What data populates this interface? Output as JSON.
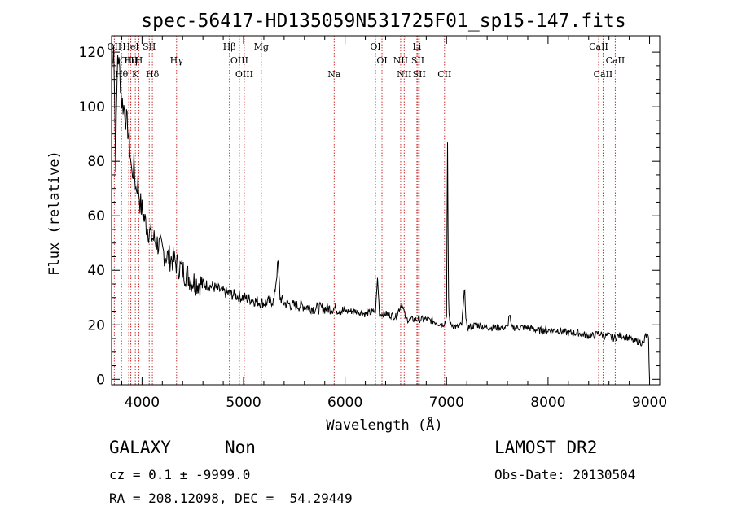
{
  "chart_data": {
    "type": "line",
    "title": "spec-56417-HD135059N531725F01_sp15-147.fits",
    "xlabel": "Wavelength (Å)",
    "ylabel": "Flux (relative)",
    "xlim": [
      3700,
      9100
    ],
    "ylim": [
      -2,
      126
    ],
    "x_ticks": [
      4000,
      5000,
      6000,
      7000,
      8000,
      9000
    ],
    "y_ticks": [
      0,
      20,
      40,
      60,
      80,
      100,
      120
    ],
    "grid": false,
    "series": [
      {
        "x": [
          3700,
          3720,
          3740,
          3760,
          3780,
          3800,
          3820,
          3840,
          3860,
          3880,
          3900,
          3920,
          3940,
          3960,
          3980,
          4000,
          4030,
          4060,
          4100,
          4150,
          4200,
          4250,
          4300,
          4350,
          4400,
          4450,
          4500,
          4600,
          4700,
          4800,
          4900,
          5000,
          5100,
          5200,
          5300,
          5340,
          5360,
          5400,
          5500,
          5600,
          5700,
          5800,
          5900,
          6000,
          6100,
          6200,
          6300,
          6320,
          6340,
          6400,
          6500,
          6560,
          6600,
          6700,
          6800,
          6900,
          6950,
          6990,
          7000,
          7005,
          7010,
          7015,
          7020,
          7025,
          7030,
          7035,
          7040,
          7060,
          7100,
          7150,
          7180,
          7190,
          7200,
          7300,
          7400,
          7500,
          7600,
          7620,
          7640,
          7700,
          7800,
          7900,
          8000,
          8100,
          8200,
          8300,
          8400,
          8450,
          8500,
          8550,
          8600,
          8650,
          8700,
          8750,
          8800,
          8850,
          8900,
          8940,
          8960,
          8980,
          8990,
          9000
        ],
        "y": [
          110,
          125,
          80,
          120,
          113,
          102,
          100,
          96,
          92,
          85,
          75,
          78,
          70,
          72,
          65,
          62,
          58,
          55,
          52,
          50,
          47,
          45,
          44,
          42,
          40,
          38,
          36,
          35,
          34,
          32,
          31,
          30,
          29,
          28,
          29,
          43,
          30,
          28,
          27,
          27,
          26,
          26,
          26,
          25,
          25,
          24,
          25,
          37,
          24,
          24,
          23,
          28,
          22,
          22,
          22,
          21,
          20,
          21,
          24,
          60,
          86,
          55,
          30,
          24,
          22,
          21,
          20,
          20,
          19,
          20,
          34,
          22,
          19,
          20,
          19,
          19,
          19,
          24,
          19,
          19,
          19,
          18,
          18,
          18,
          17,
          17,
          16,
          16,
          17,
          16,
          16,
          15,
          16,
          16,
          15,
          14,
          14,
          13,
          16,
          16,
          14,
          0
        ]
      }
    ],
    "line_markers": [
      {
        "label": "OII",
        "x": 3727,
        "row": 0
      },
      {
        "label": "HeI",
        "x": 3889,
        "row": 0
      },
      {
        "label": "SII",
        "x": 4071,
        "row": 0
      },
      {
        "label": "Hβ",
        "x": 4861,
        "row": 0
      },
      {
        "label": "Mg",
        "x": 5175,
        "row": 0
      },
      {
        "label": "OI",
        "x": 6300,
        "row": 0
      },
      {
        "label": "Li",
        "x": 6708,
        "row": 0
      },
      {
        "label": "CaII",
        "x": 8498,
        "row": 0
      },
      {
        "label": "OIII",
        "x": 3869,
        "row": 1
      },
      {
        "label": "Hη",
        "x": 3889,
        "row": 1
      },
      {
        "label": "H",
        "x": 3969,
        "row": 1
      },
      {
        "label": "Hγ",
        "x": 4340,
        "row": 1
      },
      {
        "label": "OIII",
        "x": 4959,
        "row": 1
      },
      {
        "label": "OI",
        "x": 6364,
        "row": 1
      },
      {
        "label": "NII",
        "x": 6548,
        "row": 1
      },
      {
        "label": "SII",
        "x": 6717,
        "row": 1
      },
      {
        "label": "CaII",
        "x": 8662,
        "row": 1
      },
      {
        "label": "Hθ",
        "x": 3798,
        "row": 2
      },
      {
        "label": "K",
        "x": 3934,
        "row": 2
      },
      {
        "label": "Hδ",
        "x": 4102,
        "row": 2
      },
      {
        "label": "OIII",
        "x": 5007,
        "row": 2
      },
      {
        "label": "Na",
        "x": 5893,
        "row": 2
      },
      {
        "label": "NII",
        "x": 6583,
        "row": 2
      },
      {
        "label": "SII",
        "x": 6731,
        "row": 2
      },
      {
        "label": "CII",
        "x": 6980,
        "row": 2
      },
      {
        "label": "CaII",
        "x": 8542,
        "row": 2
      }
    ],
    "marker_color": "#cc3333"
  },
  "info": {
    "object_class": "GALAXY",
    "subclass": "Non",
    "redshift": "cz = 0.1 ± -9999.0",
    "coords": "RA = 208.12098, DEC =  54.29449",
    "survey": "LAMOST DR2",
    "obs_date": "Obs-Date: 20130504"
  }
}
